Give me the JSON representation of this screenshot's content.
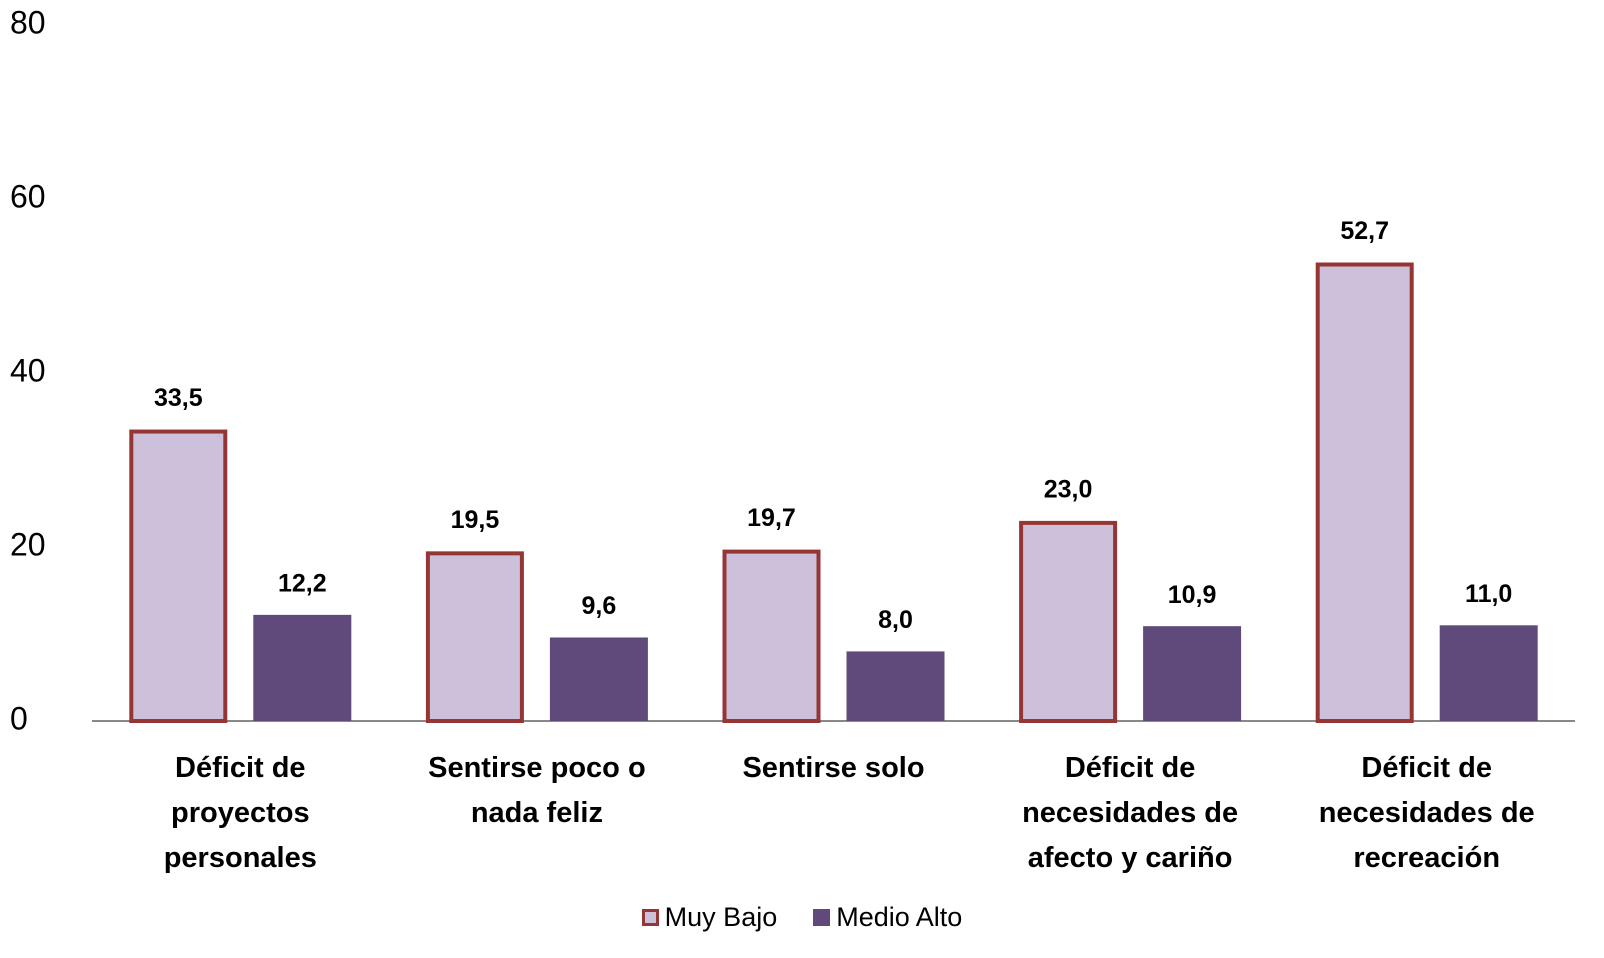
{
  "chart_data": {
    "type": "bar",
    "categories": [
      "Déficit de proyectos personales",
      "Sentirse poco o nada feliz",
      "Sentirse solo",
      "Déficit de necesidades de afecto y cariño",
      "Déficit de necesidades de recreación"
    ],
    "series": [
      {
        "name": "Muy Bajo",
        "color": "#ccc0da",
        "edge_color": "#943634",
        "values": [
          33.5,
          19.5,
          19.7,
          23.0,
          52.7
        ],
        "value_labels": [
          "33,5",
          "19,5",
          "19,7",
          "23,0",
          "52,7"
        ]
      },
      {
        "name": "Medio Alto",
        "color": "#604a7b",
        "values": [
          12.2,
          9.6,
          8.0,
          10.9,
          11.0
        ],
        "value_labels": [
          "12,2",
          "9,6",
          "8,0",
          "10,9",
          "11,0"
        ]
      }
    ],
    "ylim": [
      0,
      80
    ],
    "yticks": [
      0,
      20,
      40,
      60,
      80
    ],
    "grid": false,
    "legend": "bottom"
  }
}
